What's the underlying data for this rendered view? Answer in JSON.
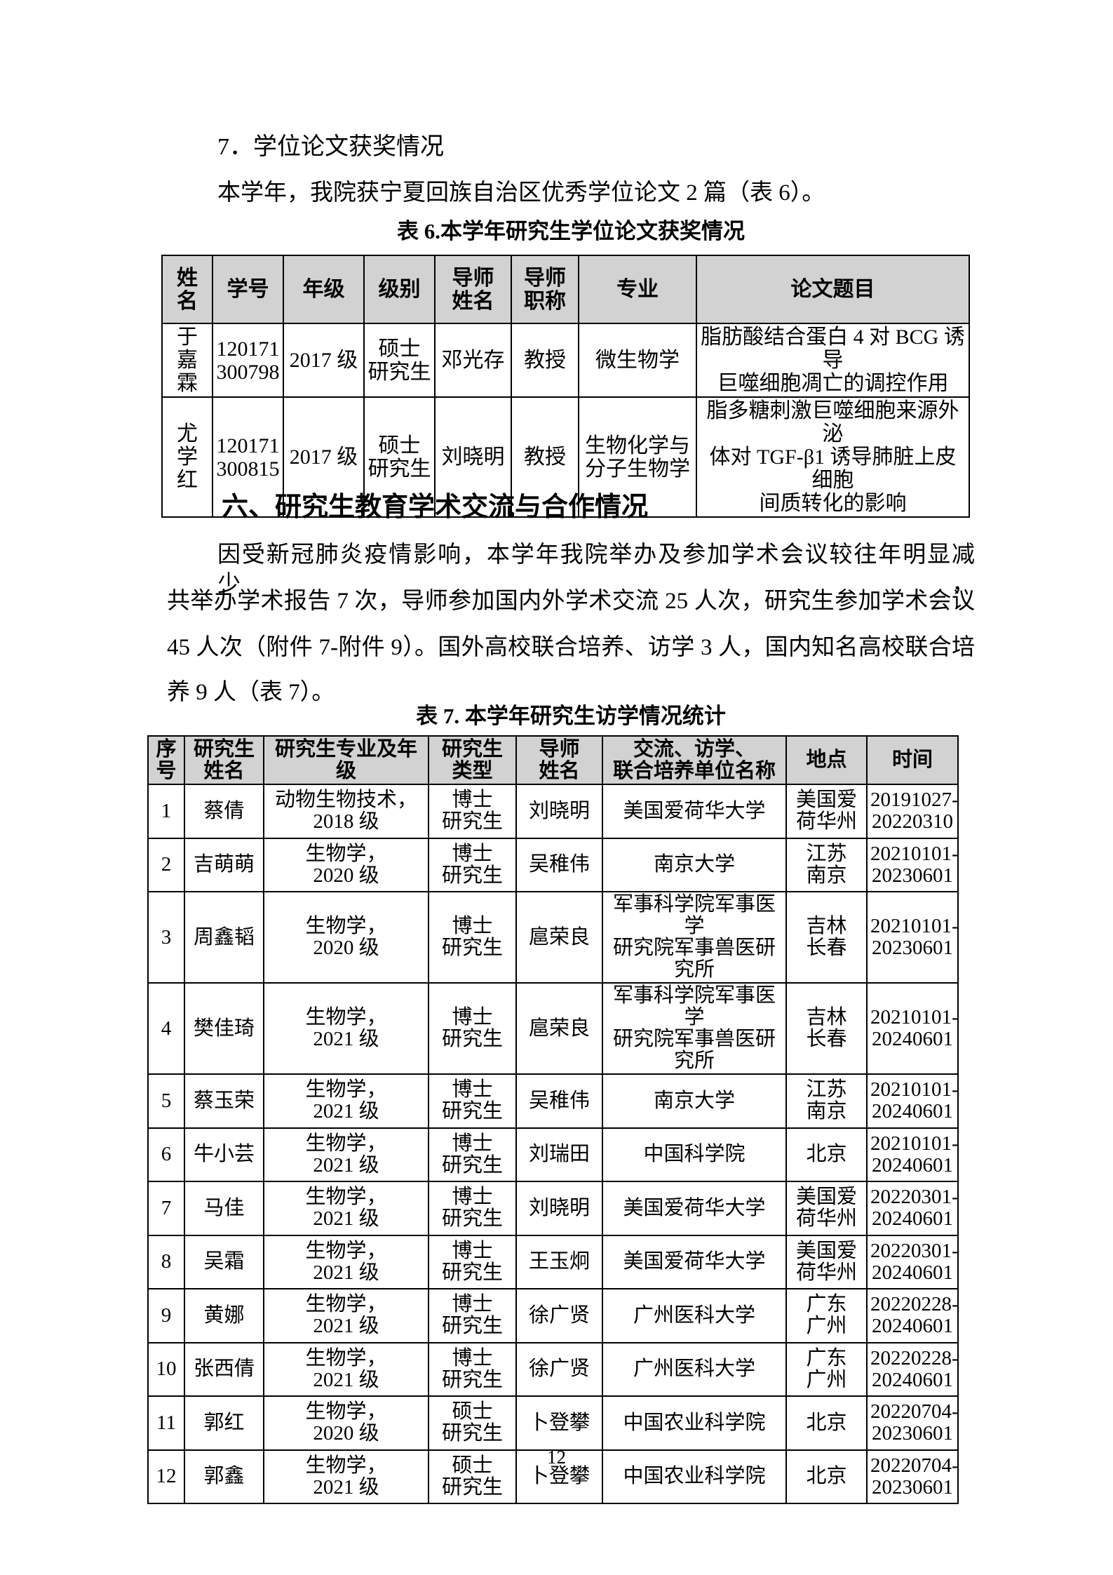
{
  "page_number": "12",
  "colors": {
    "table_header_bg": "#d2d2d2",
    "border": "#000000",
    "text": "#000000",
    "page_bg": "#ffffff"
  },
  "sections": {
    "award": {
      "heading": "7．学位论文获奖情况",
      "paragraph": "本学年，我院获宁夏回族自治区优秀学位论文 2 篇（表 6）。"
    },
    "exchange": {
      "heading": "六、研究生教育学术交流与合作情况",
      "lines": [
        "因受新冠肺炎疫情影响，本学年我院举办及参加学术会议较往年明显减少，",
        "共举办学术报告 7 次，导师参加国内外学术交流 25 人次，研究生参加学术会议",
        "45 人次（附件 7-附件 9）。国外高校联合培养、访学 3 人，国内知名高校联合培",
        "养 9 人（表 7）。"
      ]
    }
  },
  "table6": {
    "caption": "表 6.本学年研究生学位论文获奖情况",
    "headers": [
      [
        "姓",
        "名"
      ],
      "学号",
      "年级",
      "级别",
      [
        "导师",
        "姓名"
      ],
      [
        "导师",
        "职称"
      ],
      "专业",
      "论文题目"
    ],
    "rows": [
      [
        [
          "于",
          "嘉",
          "霖"
        ],
        [
          "120171",
          "300798"
        ],
        "2017 级",
        [
          "硕士",
          "研究生"
        ],
        "邓光存",
        "教授",
        "微生物学",
        [
          "脂肪酸结合蛋白 4 对 BCG 诱导",
          "巨噬细胞凋亡的调控作用"
        ]
      ],
      [
        [
          "尤",
          "学",
          "红"
        ],
        [
          "120171",
          "300815"
        ],
        "2017 级",
        [
          "硕士",
          "研究生"
        ],
        "刘晓明",
        "教授",
        [
          "生物化学与",
          "分子生物学"
        ],
        [
          "脂多糖刺激巨噬细胞来源外泌",
          "体对 TGF-β1 诱导肺脏上皮细胞",
          "间质转化的影响"
        ]
      ]
    ]
  },
  "table7": {
    "caption": "表 7. 本学年研究生访学情况统计",
    "headers": [
      [
        "序",
        "号"
      ],
      [
        "研究生",
        "姓名"
      ],
      "研究生专业及年级",
      [
        "研究生",
        "类型"
      ],
      [
        "导师",
        "姓名"
      ],
      [
        "交流、访学、",
        "联合培养单位名称"
      ],
      "地点",
      "时间"
    ],
    "rows": [
      [
        "1",
        "蔡倩",
        [
          "动物生物技术，",
          "2018 级"
        ],
        [
          "博士",
          "研究生"
        ],
        "刘晓明",
        "美国爱荷华大学",
        [
          "美国爱",
          "荷华州"
        ],
        [
          "20191027-",
          "20220310"
        ]
      ],
      [
        "2",
        "吉萌萌",
        [
          "生物学，",
          "2020 级"
        ],
        [
          "博士",
          "研究生"
        ],
        "吴稚伟",
        "南京大学",
        [
          "江苏",
          "南京"
        ],
        [
          "20210101-",
          "20230601"
        ]
      ],
      [
        "3",
        "周鑫韬",
        [
          "生物学，",
          "2020 级"
        ],
        [
          "博士",
          "研究生"
        ],
        "扈荣良",
        [
          "军事科学院军事医学",
          "研究院军事兽医研究所"
        ],
        [
          "吉林",
          "长春"
        ],
        [
          "20210101-",
          "20230601"
        ]
      ],
      [
        "4",
        "樊佳琦",
        [
          "生物学，",
          "2021 级"
        ],
        [
          "博士",
          "研究生"
        ],
        "扈荣良",
        [
          "军事科学院军事医学",
          "研究院军事兽医研究所"
        ],
        [
          "吉林",
          "长春"
        ],
        [
          "20210101-",
          "20240601"
        ]
      ],
      [
        "5",
        "蔡玉荣",
        [
          "生物学，",
          "2021 级"
        ],
        [
          "博士",
          "研究生"
        ],
        "吴稚伟",
        "南京大学",
        [
          "江苏",
          "南京"
        ],
        [
          "20210101-",
          "20240601"
        ]
      ],
      [
        "6",
        "牛小芸",
        [
          "生物学，",
          "2021 级"
        ],
        [
          "博士",
          "研究生"
        ],
        "刘瑞田",
        "中国科学院",
        [
          "北京"
        ],
        [
          "20210101-",
          "20240601"
        ]
      ],
      [
        "7",
        "马佳",
        [
          "生物学，",
          "2021 级"
        ],
        [
          "博士",
          "研究生"
        ],
        "刘晓明",
        "美国爱荷华大学",
        [
          "美国爱",
          "荷华州"
        ],
        [
          "20220301-",
          "20240601"
        ]
      ],
      [
        "8",
        "吴霜",
        [
          "生物学，",
          "2021 级"
        ],
        [
          "博士",
          "研究生"
        ],
        "王玉炯",
        "美国爱荷华大学",
        [
          "美国爱",
          "荷华州"
        ],
        [
          "20220301-",
          "20240601"
        ]
      ],
      [
        "9",
        "黄娜",
        [
          "生物学，",
          "2021 级"
        ],
        [
          "博士",
          "研究生"
        ],
        "徐广贤",
        "广州医科大学",
        [
          "广东",
          "广州"
        ],
        [
          "20220228-",
          "20240601"
        ]
      ],
      [
        "10",
        "张西倩",
        [
          "生物学，",
          "2021 级"
        ],
        [
          "博士",
          "研究生"
        ],
        "徐广贤",
        "广州医科大学",
        [
          "广东",
          "广州"
        ],
        [
          "20220228-",
          "20240601"
        ]
      ],
      [
        "11",
        "郭红",
        [
          "生物学，",
          "2020 级"
        ],
        [
          "硕士",
          "研究生"
        ],
        "卜登攀",
        "中国农业科学院",
        [
          "北京"
        ],
        [
          "20220704-",
          "20230601"
        ]
      ],
      [
        "12",
        "郭鑫",
        [
          "生物学，",
          "2021 级"
        ],
        [
          "硕士",
          "研究生"
        ],
        "卜登攀",
        "中国农业科学院",
        [
          "北京"
        ],
        [
          "20220704-",
          "20230601"
        ]
      ]
    ]
  }
}
